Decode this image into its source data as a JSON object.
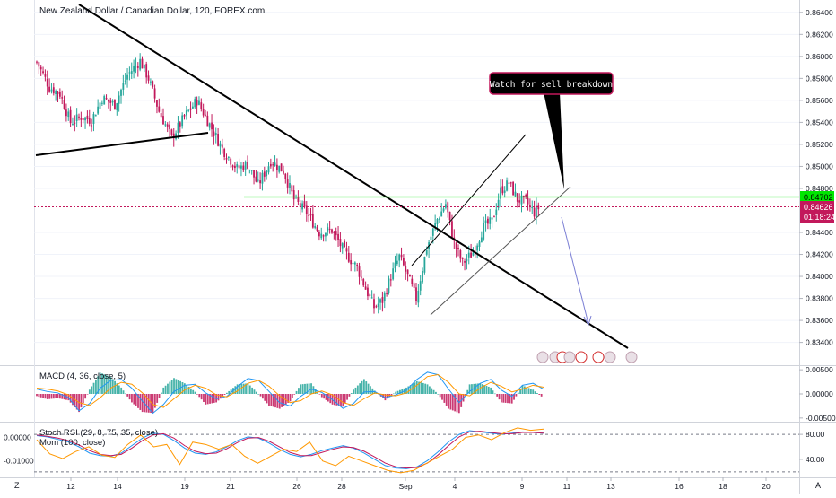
{
  "header": {
    "title": "New Zealand Dollar / Canadian Dollar, 120, FOREX.com"
  },
  "annotation": {
    "text": "Watch for sell breakdown"
  },
  "price_badges": {
    "level": "0.84702",
    "last": "0.84626",
    "countdown": "01:18:24"
  },
  "macd_label": "MACD (4, 36, close, 5)",
  "stoch_label": "Stoch RSI (29, 8, 75, 35, close)",
  "mom_label": "Mom (100, close)",
  "corner_left": "Z",
  "corner_right": "A",
  "colors": {
    "bull": "#26a69a",
    "bear": "#c2185b",
    "green_line": "#00e600",
    "price_line": "#c2185b",
    "macd_line": "#2196f3",
    "signal_line": "#ff9800",
    "stoch_k": "#2196f3",
    "stoch_d": "#c2185b",
    "mom": "#ff9800"
  },
  "chart_data": {
    "type": "candlestick",
    "title": "New Zealand Dollar / Canadian Dollar, 120, FOREX.com",
    "x_ticks": [
      "12",
      "14",
      "19",
      "21",
      "26",
      "28",
      "Sep",
      "4",
      "9",
      "11",
      "13",
      "16",
      "18",
      "20"
    ],
    "y_ticks": [
      "0.86400",
      "0.86200",
      "0.86000",
      "0.85800",
      "0.85600",
      "0.85400",
      "0.85200",
      "0.85000",
      "0.84800",
      "0.84400",
      "0.84200",
      "0.84000",
      "0.83800",
      "0.83600",
      "0.83400"
    ],
    "ylim": [
      0.8325,
      0.8648
    ],
    "close_path": [
      [
        0,
        0.8595
      ],
      [
        6,
        0.8572
      ],
      [
        11,
        0.8566
      ],
      [
        16,
        0.854
      ],
      [
        21,
        0.8545
      ],
      [
        26,
        0.8542
      ],
      [
        31,
        0.8562
      ],
      [
        37,
        0.8556
      ],
      [
        43,
        0.8583
      ],
      [
        49,
        0.8596
      ],
      [
        53,
        0.858
      ],
      [
        58,
        0.855
      ],
      [
        64,
        0.8526
      ],
      [
        70,
        0.8545
      ],
      [
        76,
        0.856
      ],
      [
        82,
        0.8538
      ],
      [
        88,
        0.8516
      ],
      [
        95,
        0.8498
      ],
      [
        100,
        0.8502
      ],
      [
        105,
        0.8483
      ],
      [
        111,
        0.8505
      ],
      [
        117,
        0.8496
      ],
      [
        122,
        0.847
      ],
      [
        128,
        0.8458
      ],
      [
        134,
        0.844
      ],
      [
        140,
        0.8442
      ],
      [
        146,
        0.8422
      ],
      [
        152,
        0.8408
      ],
      [
        156,
        0.8389
      ],
      [
        160,
        0.8372
      ],
      [
        164,
        0.8378
      ],
      [
        168,
        0.84
      ],
      [
        172,
        0.8418
      ],
      [
        176,
        0.84
      ],
      [
        180,
        0.838
      ],
      [
        185,
        0.8426
      ],
      [
        190,
        0.8452
      ],
      [
        194,
        0.8466
      ],
      [
        198,
        0.843
      ],
      [
        202,
        0.8412
      ],
      [
        207,
        0.8422
      ],
      [
        212,
        0.8445
      ],
      [
        216,
        0.845
      ],
      [
        220,
        0.8478
      ],
      [
        224,
        0.8485
      ],
      [
        228,
        0.847
      ],
      [
        232,
        0.8468
      ],
      [
        236,
        0.8458
      ],
      [
        238,
        0.8462
      ]
    ],
    "macd_ticks": [
      "0.00500",
      "0.00000",
      "-0.00500"
    ],
    "macd_ylim": [
      -0.0054,
      0.0054
    ],
    "macd_series": [
      {
        "name": "MACD",
        "values": [
          0.001,
          0.0005,
          0.0002,
          -0.0008,
          -0.0035,
          -0.002,
          0.0012,
          0.0028,
          0.003,
          0.0012,
          -0.0015,
          -0.004,
          -0.0022,
          0.0005,
          0.0018,
          0.002,
          0.0002,
          -0.001,
          -0.0005,
          0.0015,
          0.0032,
          0.0028,
          0.0005,
          -0.0018,
          -0.0025,
          -0.0005,
          0.001,
          0.0003,
          -0.0012,
          -0.003,
          -0.002,
          0.0004,
          0.0005,
          -0.0008,
          -0.0002,
          0.0008,
          0.003,
          0.0045,
          0.004,
          0.001,
          -0.0018,
          0.0005,
          0.0022,
          0.003,
          0.0008,
          -0.0005,
          0.0018,
          0.0022,
          0.001
        ]
      },
      {
        "name": "Signal",
        "values": [
          0.0012,
          0.001,
          0.0006,
          -0.0002,
          -0.0018,
          -0.0024,
          -0.0008,
          0.0012,
          0.0024,
          0.002,
          0.0002,
          -0.0022,
          -0.0028,
          -0.001,
          0.0008,
          0.0018,
          0.0012,
          -0.0002,
          -0.0006,
          0.0006,
          0.0022,
          0.0028,
          0.0016,
          -0.0004,
          -0.0018,
          -0.0014,
          0.0,
          0.0006,
          -0.0002,
          -0.0018,
          -0.0024,
          -0.001,
          0.0002,
          -0.0002,
          -0.0004,
          0.0002,
          0.0018,
          0.0036,
          0.004,
          0.0024,
          0.0,
          -0.0004,
          0.0012,
          0.0024,
          0.0016,
          0.0004,
          0.001,
          0.0018,
          0.0014
        ]
      }
    ],
    "stoch_ticks": [
      "80.00",
      "40.00"
    ],
    "stoch_levels": [
      80,
      20
    ],
    "stoch_ylim": [
      14,
      96
    ],
    "stoch_series": [
      {
        "name": "K",
        "values": [
          78,
          76,
          72,
          68,
          60,
          50,
          46,
          45,
          50,
          62,
          74,
          82,
          80,
          70,
          58,
          50,
          48,
          52,
          60,
          70,
          76,
          74,
          66,
          56,
          48,
          44,
          48,
          54,
          58,
          62,
          58,
          50,
          40,
          30,
          26,
          25,
          28,
          38,
          52,
          68,
          80,
          86,
          84,
          82,
          80,
          82,
          84,
          83,
          82
        ]
      },
      {
        "name": "D",
        "values": [
          79,
          77,
          74,
          70,
          63,
          54,
          48,
          46,
          48,
          58,
          70,
          79,
          81,
          74,
          62,
          53,
          49,
          50,
          57,
          67,
          74,
          75,
          69,
          60,
          51,
          46,
          46,
          51,
          56,
          60,
          59,
          53,
          44,
          34,
          28,
          26,
          27,
          34,
          47,
          62,
          76,
          84,
          85,
          83,
          81,
          81,
          83,
          83,
          82
        ]
      }
    ],
    "mom_ticks": [
      "0.00000",
      "-0.01000"
    ],
    "mom_ylim": [
      -0.0162,
      0.0055
    ],
    "mom_series": [
      {
        "name": "Mom",
        "values": [
          -0.001,
          -0.007,
          -0.009,
          -0.006,
          -0.004,
          -0.0075,
          -0.0085,
          -0.003,
          0.001,
          -0.004,
          -0.003,
          -0.0115,
          -0.002,
          -0.003,
          -0.005,
          -0.003,
          -0.008,
          -0.011,
          -0.008,
          -0.005,
          -0.006,
          -0.002,
          -0.01,
          -0.012,
          -0.008,
          -0.01,
          -0.012,
          -0.014,
          -0.015,
          -0.014,
          -0.011,
          -0.008,
          -0.005,
          0.0,
          0.001,
          -0.001,
          0.002,
          0.004,
          0.003,
          0.0035
        ]
      }
    ]
  }
}
